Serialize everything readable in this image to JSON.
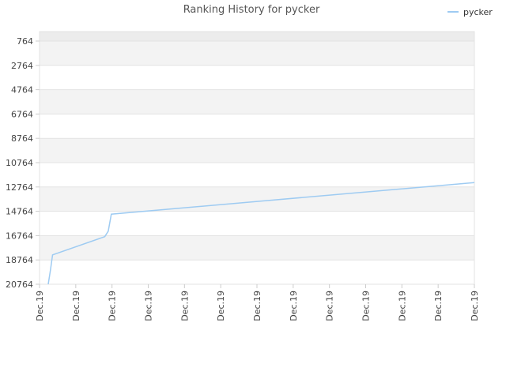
{
  "chart_data": {
    "type": "line",
    "title": "Ranking History for pycker",
    "xlabel": "",
    "ylabel": "",
    "y_axis_inverted": true,
    "ylim": [
      764,
      20764
    ],
    "y_ticks": [
      "764",
      "2764",
      "4764",
      "6764",
      "8764",
      "10764",
      "12764",
      "14764",
      "16764",
      "18764",
      "20764"
    ],
    "x_ticks": [
      "Dec.19",
      "Dec.19",
      "Dec.19",
      "Dec.19",
      "Dec.19",
      "Dec.19",
      "Dec.19",
      "Dec.19",
      "Dec.19",
      "Dec.19",
      "Dec.19",
      "Dec.19",
      "Dec.19"
    ],
    "grid": "horizontal bands",
    "legend": {
      "position": "top-right"
    },
    "series": [
      {
        "name": "pycker",
        "color": "#9ecbf2",
        "x": [
          0.02,
          0.025,
          0.03,
          0.15,
          0.158,
          0.165,
          1.0
        ],
        "values": [
          20764,
          19600,
          18350,
          16850,
          16400,
          15000,
          12400
        ]
      }
    ]
  }
}
